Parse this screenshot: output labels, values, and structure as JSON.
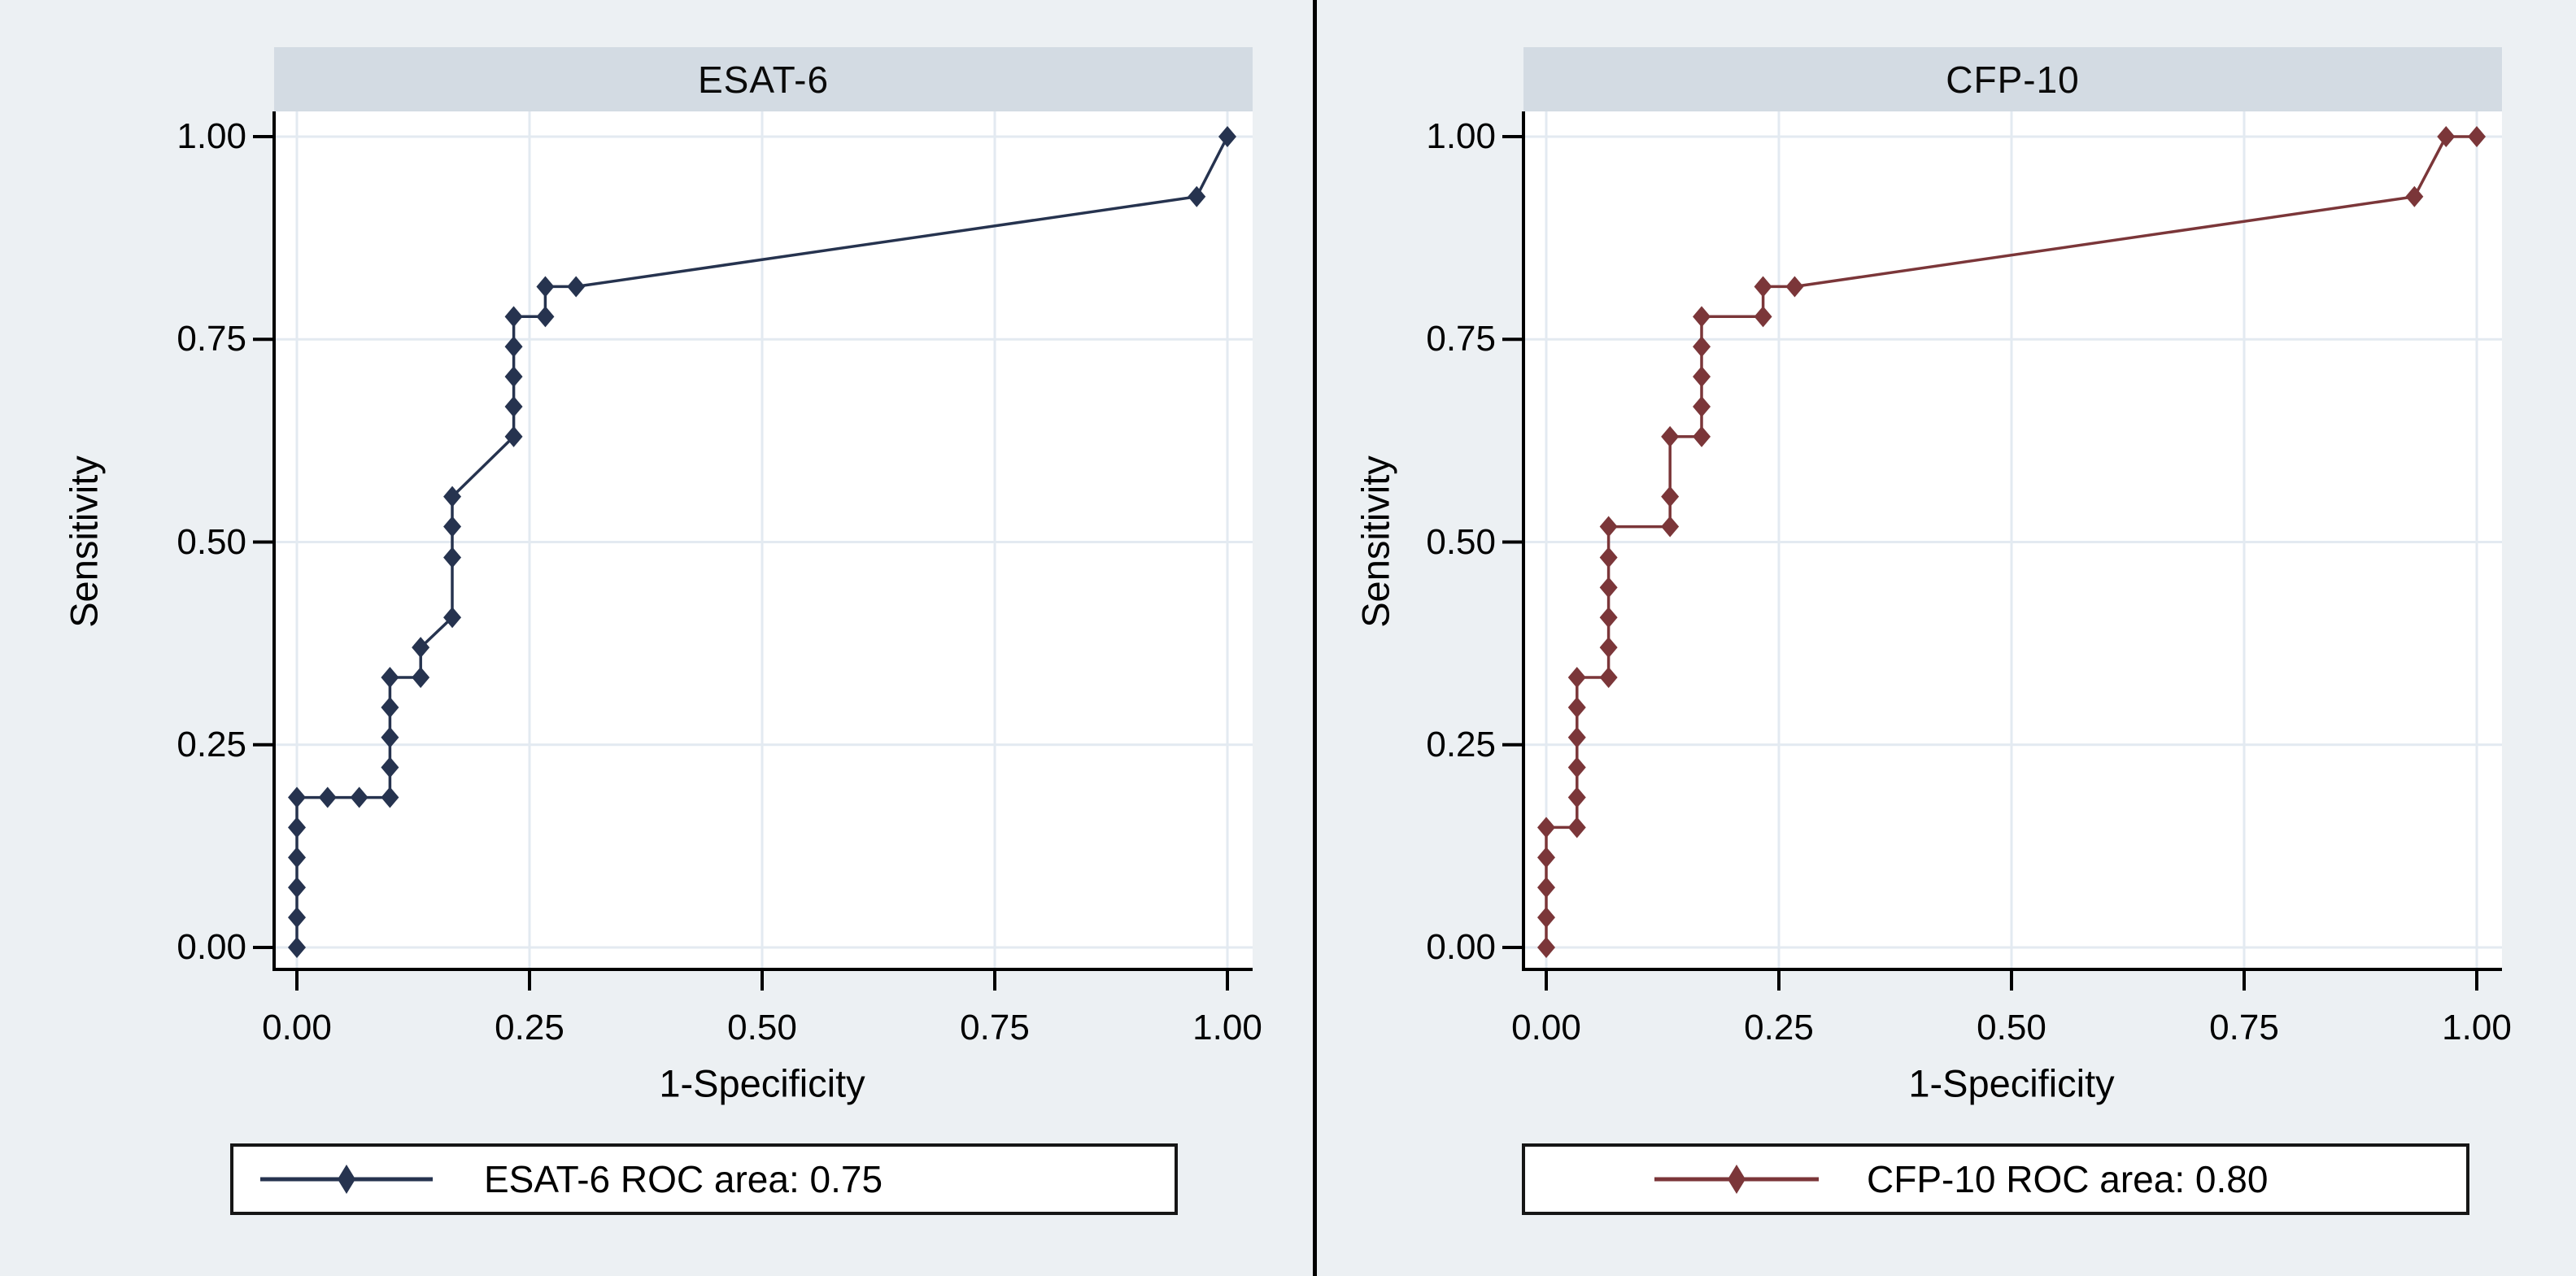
{
  "colors": {
    "background": "#ecf0f3",
    "panel_title_bar": "#d3dbe3",
    "plot_background": "#ffffff",
    "gridline": "#e3eaf1",
    "axis": "#000000",
    "divider": "#000000",
    "legend_border": "#161616",
    "esat6_series": "#26334f",
    "cfp10_series": "#7b3639"
  },
  "chart_data": [
    {
      "type": "line",
      "title": "ESAT-6",
      "xlabel": "1-Specificity",
      "ylabel": "Sensitivity",
      "xlim": [
        0,
        1
      ],
      "ylim": [
        0,
        1
      ],
      "grid": true,
      "xticks": {
        "values": [
          0,
          0.25,
          0.5,
          0.75,
          1
        ],
        "labels": [
          "0.00",
          "0.25",
          "0.50",
          "0.75",
          "1.00"
        ]
      },
      "yticks": {
        "values": [
          0,
          0.25,
          0.5,
          0.75,
          1
        ],
        "labels": [
          "0.00",
          "0.25",
          "0.50",
          "0.75",
          "1.00"
        ]
      },
      "legend": {
        "position": "bottom",
        "label": "ESAT-6 ROC area: 0.75"
      },
      "series": [
        {
          "name": "ESAT-6",
          "roc_area": 0.75,
          "color": "#26334f",
          "marker": "diamond",
          "points": [
            [
              0,
              0
            ],
            [
              0,
              0.037
            ],
            [
              0,
              0.074
            ],
            [
              0,
              0.111
            ],
            [
              0,
              0.148
            ],
            [
              0,
              0.185
            ],
            [
              0.033,
              0.185
            ],
            [
              0.067,
              0.185
            ],
            [
              0.1,
              0.185
            ],
            [
              0.1,
              0.222
            ],
            [
              0.1,
              0.259
            ],
            [
              0.1,
              0.296
            ],
            [
              0.1,
              0.333
            ],
            [
              0.133,
              0.333
            ],
            [
              0.133,
              0.37
            ],
            [
              0.167,
              0.407
            ],
            [
              0.167,
              0.481
            ],
            [
              0.167,
              0.519
            ],
            [
              0.167,
              0.556
            ],
            [
              0.233,
              0.63
            ],
            [
              0.233,
              0.667
            ],
            [
              0.233,
              0.704
            ],
            [
              0.233,
              0.741
            ],
            [
              0.233,
              0.778
            ],
            [
              0.267,
              0.778
            ],
            [
              0.267,
              0.815
            ],
            [
              0.3,
              0.815
            ],
            [
              0.967,
              0.926
            ],
            [
              1,
              1
            ]
          ]
        }
      ]
    },
    {
      "type": "line",
      "title": "CFP-10",
      "xlabel": "1-Specificity",
      "ylabel": "Sensitivity",
      "xlim": [
        0,
        1
      ],
      "ylim": [
        0,
        1
      ],
      "grid": true,
      "xticks": {
        "values": [
          0,
          0.25,
          0.5,
          0.75,
          1
        ],
        "labels": [
          "0.00",
          "0.25",
          "0.50",
          "0.75",
          "1.00"
        ]
      },
      "yticks": {
        "values": [
          0,
          0.25,
          0.5,
          0.75,
          1
        ],
        "labels": [
          "0.00",
          "0.25",
          "0.50",
          "0.75",
          "1.00"
        ]
      },
      "legend": {
        "position": "bottom",
        "label": "CFP-10 ROC area: 0.80"
      },
      "series": [
        {
          "name": "CFP-10",
          "roc_area": 0.8,
          "color": "#7b3639",
          "marker": "diamond",
          "points": [
            [
              0,
              0
            ],
            [
              0,
              0.037
            ],
            [
              0,
              0.074
            ],
            [
              0,
              0.111
            ],
            [
              0,
              0.148
            ],
            [
              0.033,
              0.148
            ],
            [
              0.033,
              0.185
            ],
            [
              0.033,
              0.222
            ],
            [
              0.033,
              0.259
            ],
            [
              0.033,
              0.296
            ],
            [
              0.033,
              0.333
            ],
            [
              0.067,
              0.333
            ],
            [
              0.067,
              0.37
            ],
            [
              0.067,
              0.407
            ],
            [
              0.067,
              0.444
            ],
            [
              0.067,
              0.481
            ],
            [
              0.067,
              0.519
            ],
            [
              0.133,
              0.519
            ],
            [
              0.133,
              0.556
            ],
            [
              0.133,
              0.63
            ],
            [
              0.167,
              0.63
            ],
            [
              0.167,
              0.667
            ],
            [
              0.167,
              0.704
            ],
            [
              0.167,
              0.741
            ],
            [
              0.167,
              0.778
            ],
            [
              0.233,
              0.778
            ],
            [
              0.233,
              0.815
            ],
            [
              0.267,
              0.815
            ],
            [
              0.933,
              0.926
            ],
            [
              0.967,
              1
            ],
            [
              1,
              1
            ]
          ]
        }
      ]
    }
  ]
}
